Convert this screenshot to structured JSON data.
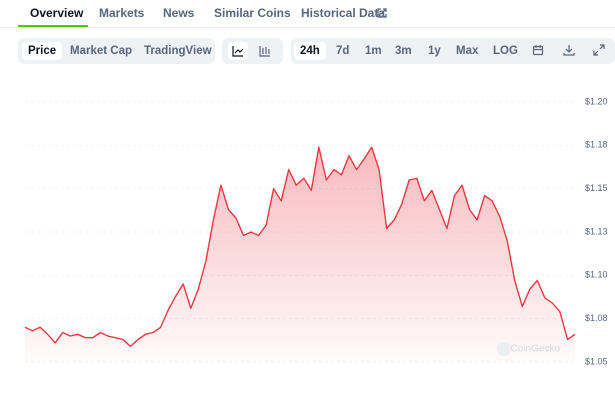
{
  "tabs": [
    "Overview",
    "Markets",
    "News",
    "Similar Coins",
    "Historical Data"
  ],
  "chart_types": [
    "Price",
    "Market Cap",
    "TradingView"
  ],
  "ranges": [
    "24h",
    "7d",
    "1m",
    "3m",
    "1y",
    "Max",
    "LOG"
  ],
  "watermark": "CoinGecko",
  "chart_data": {
    "type": "area",
    "color": "#ea3943",
    "values": [
      1.07,
      1.068,
      1.07,
      1.066,
      1.061,
      1.067,
      1.065,
      1.066,
      1.064,
      1.064,
      1.067,
      1.065,
      1.064,
      1.063,
      1.059,
      1.063,
      1.066,
      1.067,
      1.07,
      1.08,
      1.088,
      1.095,
      1.081,
      1.092,
      1.108,
      1.132,
      1.152,
      1.138,
      1.133,
      1.123,
      1.125,
      1.123,
      1.129,
      1.15,
      1.143,
      1.161,
      1.152,
      1.156,
      1.149,
      1.174,
      1.155,
      1.161,
      1.158,
      1.169,
      1.161,
      1.167,
      1.174,
      1.161,
      1.127,
      1.132,
      1.141,
      1.155,
      1.156,
      1.143,
      1.149,
      1.138,
      1.127,
      1.146,
      1.152,
      1.138,
      1.132,
      1.146,
      1.143,
      1.134,
      1.12,
      1.097,
      1.082,
      1.092,
      1.097,
      1.087,
      1.084,
      1.079,
      1.063,
      1.066
    ],
    "ylim": [
      1.05,
      1.2
    ],
    "yticks": [
      {
        "value": 1.2,
        "label": "$1.20"
      },
      {
        "value": 1.175,
        "label": "$1.18"
      },
      {
        "value": 1.15,
        "label": "$1.15"
      },
      {
        "value": 1.125,
        "label": "$1.13"
      },
      {
        "value": 1.1,
        "label": "$1.10"
      },
      {
        "value": 1.075,
        "label": "$1.08"
      },
      {
        "value": 1.05,
        "label": "$1.05"
      }
    ],
    "grid": true
  }
}
